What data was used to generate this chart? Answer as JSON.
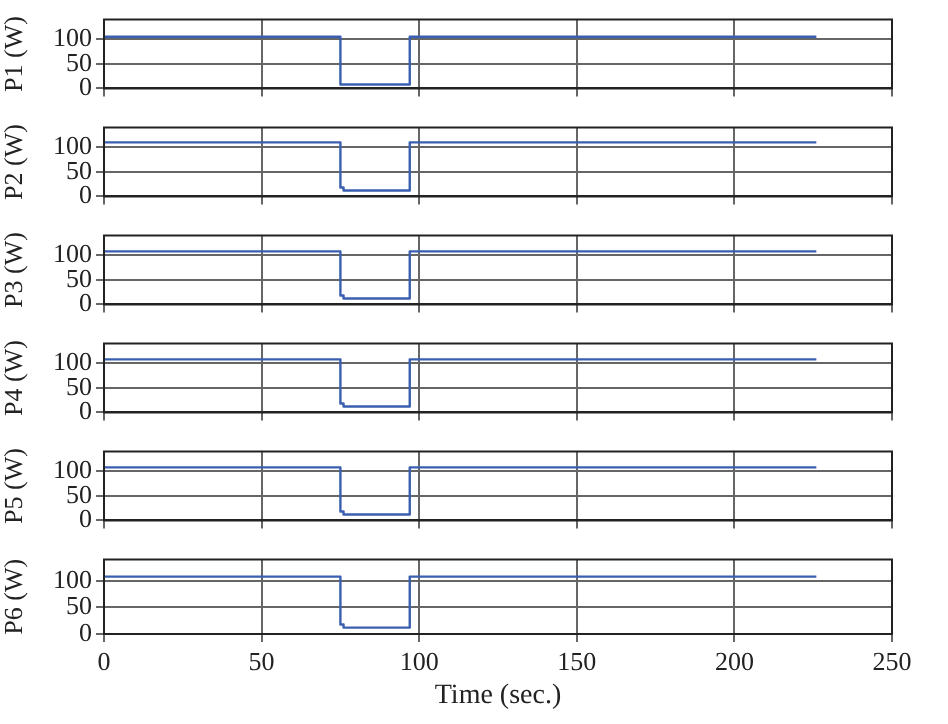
{
  "chart_data": [
    {
      "type": "line",
      "ylabel": "P1 (W)",
      "x": [
        0,
        74,
        75,
        96,
        97,
        226
      ],
      "series": [
        {
          "color": "#3a5fb0",
          "values": [
            105,
            105,
            8,
            8,
            105,
            105
          ]
        }
      ],
      "xlim": [
        0,
        250
      ],
      "xticks": [
        0,
        50,
        100,
        150,
        200,
        250
      ],
      "ylim": [
        0,
        140
      ],
      "yticks": [
        0,
        50,
        100
      ],
      "grid": true,
      "line_style": "solid",
      "tick_labels": "y"
    },
    {
      "type": "line",
      "ylabel": "P2 (W)",
      "x": [
        0,
        74,
        75,
        76,
        96,
        97,
        226
      ],
      "series": [
        {
          "color": "#3a5fb0",
          "values": [
            110,
            110,
            18,
            12,
            12,
            110,
            110
          ]
        }
      ],
      "xlim": [
        0,
        250
      ],
      "xticks": [
        0,
        50,
        100,
        150,
        200,
        250
      ],
      "ylim": [
        0,
        140
      ],
      "yticks": [
        0,
        50,
        100
      ],
      "grid": true,
      "line_style": "solid",
      "tick_labels": "y"
    },
    {
      "type": "line",
      "ylabel": "P3 (W)",
      "x": [
        0,
        74,
        75,
        76,
        96,
        97,
        226
      ],
      "series": [
        {
          "color": "#3a5fb0",
          "values": [
            108,
            108,
            18,
            12,
            12,
            108,
            108
          ]
        }
      ],
      "xlim": [
        0,
        250
      ],
      "xticks": [
        0,
        50,
        100,
        150,
        200,
        250
      ],
      "ylim": [
        0,
        140
      ],
      "yticks": [
        0,
        50,
        100
      ],
      "grid": true,
      "line_style": "solid",
      "tick_labels": "y"
    },
    {
      "type": "line",
      "ylabel": "P4 (W)",
      "x": [
        0,
        74,
        75,
        76,
        96,
        97,
        226
      ],
      "series": [
        {
          "color": "#3a5fb0",
          "values": [
            108,
            108,
            18,
            12,
            12,
            108,
            108
          ]
        }
      ],
      "xlim": [
        0,
        250
      ],
      "xticks": [
        0,
        50,
        100,
        150,
        200,
        250
      ],
      "ylim": [
        0,
        140
      ],
      "yticks": [
        0,
        50,
        100
      ],
      "grid": true,
      "line_style": "solid",
      "tick_labels": "y"
    },
    {
      "type": "line",
      "ylabel": "P5 (W)",
      "x": [
        0,
        74,
        75,
        76,
        96,
        97,
        226
      ],
      "series": [
        {
          "color": "#3a5fb0",
          "values": [
            108,
            108,
            18,
            12,
            12,
            108,
            108
          ]
        }
      ],
      "xlim": [
        0,
        250
      ],
      "xticks": [
        0,
        50,
        100,
        150,
        200,
        250
      ],
      "ylim": [
        0,
        140
      ],
      "yticks": [
        0,
        50,
        100
      ],
      "grid": true,
      "line_style": "solid",
      "tick_labels": "y"
    },
    {
      "type": "line",
      "ylabel": "P6 (W)",
      "xlabel": "Time (sec.)",
      "x": [
        0,
        74,
        75,
        76,
        96,
        97,
        226
      ],
      "series": [
        {
          "color": "#3a5fb0",
          "values": [
            108,
            108,
            18,
            12,
            12,
            108,
            108
          ]
        }
      ],
      "xlim": [
        0,
        250
      ],
      "xticks": [
        0,
        50,
        100,
        150,
        200,
        250
      ],
      "ylim": [
        0,
        140
      ],
      "yticks": [
        0,
        50,
        100
      ],
      "grid": true,
      "line_style": "solid"
    }
  ]
}
